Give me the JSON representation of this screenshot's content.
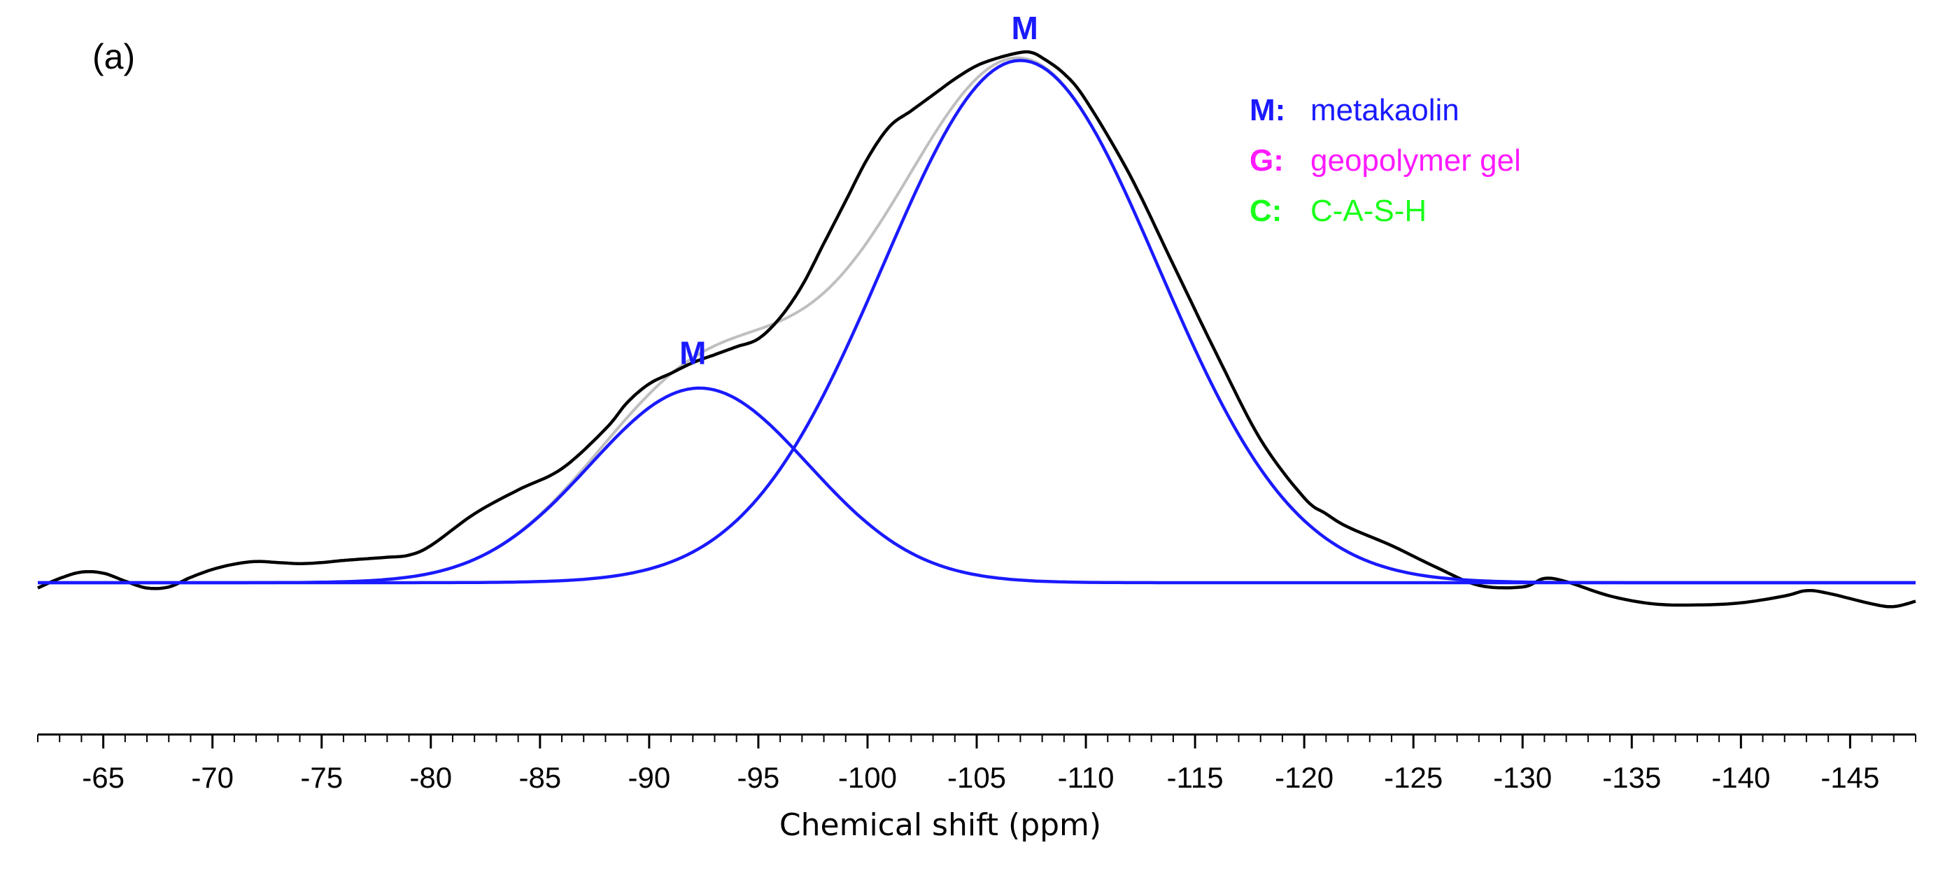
{
  "chart_data": {
    "type": "line",
    "panel_label": "(a)",
    "xlabel": "Chemical shift (ppm)",
    "ylabel": "",
    "xlim": [
      -62,
      -148
    ],
    "ylim": [
      -0.12,
      1.05
    ],
    "x_ticks": [
      -65,
      -70,
      -75,
      -80,
      -85,
      -90,
      -95,
      -100,
      -105,
      -110,
      -115,
      -120,
      -125,
      -130,
      -135,
      -140,
      -145
    ],
    "grid": false,
    "legend": [
      {
        "key": "M:",
        "text": "metakaolin",
        "color": "#1a1aff"
      },
      {
        "key": "G:",
        "text": "geopolymer gel",
        "color": "#ff1aff"
      },
      {
        "key": "C:",
        "text": "C-A-S-H",
        "color": "#1aff1a"
      }
    ],
    "peak_labels": [
      {
        "text": "M",
        "x": -92,
        "y": 0.412,
        "color": "#1a1aff"
      },
      {
        "text": "M",
        "x": -107.2,
        "y": 1.025,
        "color": "#1a1aff"
      }
    ],
    "fit_components": [
      {
        "name": "metakaolin component 1",
        "color": "#1a1aff",
        "center": -92.3,
        "height": 0.367,
        "sigma": 5.0
      },
      {
        "name": "metakaolin component 2",
        "color": "#1a1aff",
        "center": -107.0,
        "height": 0.985,
        "sigma": 6.3
      }
    ],
    "fit_sum": {
      "name": "fit envelope",
      "color": "#bfbfbf"
    },
    "experimental": {
      "name": "experimental spectrum",
      "color": "#000000",
      "x": [
        -62,
        -63,
        -64,
        -65,
        -66,
        -67,
        -68,
        -69,
        -70,
        -71,
        -72,
        -73,
        -74,
        -75,
        -76,
        -77,
        -78,
        -79,
        -80,
        -82,
        -84,
        -86,
        -88,
        -89,
        -90,
        -91,
        -92,
        -93,
        -94,
        -95,
        -96,
        -97,
        -98,
        -99,
        -100,
        -101,
        -102,
        -103,
        -104,
        -105,
        -106,
        -107,
        -107.5,
        -108,
        -109,
        -110,
        -112,
        -114,
        -116,
        -118,
        -120,
        -121,
        -122,
        -124,
        -126,
        -128,
        -130,
        -131,
        -132,
        -134,
        -136,
        -138,
        -140,
        -142,
        -143,
        -144,
        -146,
        -147,
        -148
      ],
      "y": [
        -0.01,
        0.008,
        0.02,
        0.018,
        0.003,
        -0.01,
        -0.008,
        0.01,
        0.025,
        0.035,
        0.04,
        0.038,
        0.036,
        0.038,
        0.042,
        0.045,
        0.048,
        0.052,
        0.07,
        0.13,
        0.175,
        0.215,
        0.29,
        0.34,
        0.375,
        0.395,
        0.415,
        0.43,
        0.445,
        0.46,
        0.5,
        0.56,
        0.64,
        0.72,
        0.8,
        0.86,
        0.89,
        0.92,
        0.95,
        0.975,
        0.99,
        1.0,
        1.0,
        0.99,
        0.96,
        0.91,
        0.77,
        0.6,
        0.43,
        0.27,
        0.16,
        0.13,
        0.105,
        0.07,
        0.03,
        -0.005,
        -0.008,
        0.008,
        0.002,
        -0.025,
        -0.04,
        -0.042,
        -0.038,
        -0.025,
        -0.015,
        -0.02,
        -0.04,
        -0.045,
        -0.035
      ]
    }
  }
}
